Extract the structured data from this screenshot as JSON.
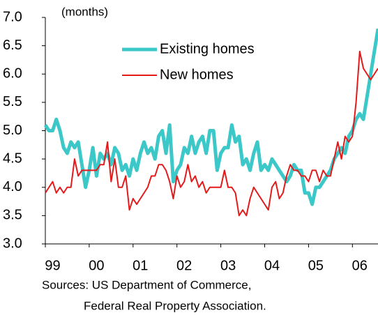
{
  "chart_data": {
    "type": "line",
    "y_label": "(months)",
    "source": [
      "Sources: US Department of Commerce,",
      "Federal Real Property Association."
    ],
    "categories": [
      "99",
      null,
      null,
      null,
      null,
      null,
      null,
      null,
      null,
      null,
      null,
      null,
      "00",
      null,
      null,
      null,
      null,
      null,
      null,
      null,
      null,
      null,
      null,
      null,
      "01",
      null,
      null,
      null,
      null,
      null,
      null,
      null,
      null,
      null,
      null,
      null,
      "02",
      null,
      null,
      null,
      null,
      null,
      null,
      null,
      null,
      null,
      null,
      null,
      "03",
      null,
      null,
      null,
      null,
      null,
      null,
      null,
      null,
      null,
      null,
      null,
      "04",
      null,
      null,
      null,
      null,
      null,
      null,
      null,
      null,
      null,
      null,
      null,
      "05",
      null,
      null,
      null,
      null,
      null,
      null,
      null,
      null,
      null,
      null,
      null,
      "06",
      null,
      null,
      null,
      null,
      null,
      null,
      null
    ],
    "series": [
      {
        "name": "Existing homes",
        "color": "#3cc8c8",
        "width": 5,
        "values": [
          5.1,
          5.0,
          5.0,
          5.2,
          5.0,
          4.7,
          4.6,
          4.8,
          4.7,
          4.8,
          4.4,
          4.0,
          4.3,
          4.7,
          4.2,
          4.6,
          4.5,
          4.6,
          4.4,
          4.7,
          4.6,
          4.3,
          4.4,
          4.2,
          4.5,
          4.3,
          4.6,
          4.8,
          4.6,
          4.7,
          4.5,
          4.9,
          5.0,
          4.6,
          5.1,
          4.1,
          4.3,
          4.4,
          4.7,
          4.6,
          4.9,
          4.6,
          4.8,
          4.9,
          4.6,
          5.0,
          5.0,
          4.3,
          4.6,
          4.7,
          4.7,
          5.1,
          4.8,
          4.9,
          4.4,
          4.5,
          4.3,
          4.6,
          4.8,
          4.3,
          4.4,
          4.3,
          4.5,
          4.4,
          4.3,
          4.2,
          4.1,
          4.2,
          4.4,
          4.3,
          4.3,
          3.9,
          3.9,
          3.7,
          4.0,
          4.0,
          4.1,
          4.2,
          4.3,
          4.5,
          4.6,
          4.7,
          4.6,
          4.9,
          5.0,
          5.2,
          5.3,
          5.2,
          5.6,
          6.0,
          6.4,
          6.8
        ]
      },
      {
        "name": "New homes",
        "color": "#e41a1a",
        "width": 2,
        "values": [
          3.9,
          4.0,
          4.1,
          3.9,
          4.0,
          3.9,
          4.0,
          4.0,
          4.5,
          4.2,
          4.3,
          4.3,
          4.3,
          4.3,
          4.3,
          4.4,
          4.4,
          4.8,
          4.1,
          4.5,
          4.0,
          4.0,
          4.2,
          3.6,
          3.8,
          3.7,
          3.8,
          3.9,
          4.0,
          4.2,
          4.2,
          4.4,
          4.4,
          4.3,
          4.1,
          3.8,
          4.2,
          4.0,
          4.1,
          4.4,
          4.1,
          4.2,
          4.0,
          4.1,
          3.9,
          4.0,
          4.0,
          4.0,
          4.0,
          4.3,
          4.0,
          4.0,
          3.9,
          3.5,
          3.6,
          3.5,
          3.8,
          4.0,
          3.9,
          3.8,
          3.7,
          3.6,
          4.0,
          4.1,
          3.8,
          3.9,
          4.2,
          4.4,
          4.3,
          4.3,
          4.2,
          4.2,
          4.1,
          4.3,
          4.3,
          4.1,
          4.3,
          4.2,
          4.2,
          4.5,
          4.8,
          4.5,
          4.9,
          4.8,
          4.9,
          5.5,
          6.4,
          6.1,
          6.0,
          5.9,
          6.0,
          6.1
        ]
      }
    ],
    "ylim": [
      3.0,
      7.0
    ],
    "yticks": [
      {
        "value": 3.0,
        "label": "3.0"
      },
      {
        "value": 3.5,
        "label": "3.5"
      },
      {
        "value": 4.0,
        "label": "4.0"
      },
      {
        "value": 4.5,
        "label": "4.5"
      },
      {
        "value": 5.0,
        "label": "5.0"
      },
      {
        "value": 5.5,
        "label": "5.5"
      },
      {
        "value": 6.0,
        "label": "6.0"
      },
      {
        "value": 6.5,
        "label": "6.5"
      },
      {
        "value": 7.0,
        "label": "7.0"
      }
    ],
    "grid": false
  }
}
